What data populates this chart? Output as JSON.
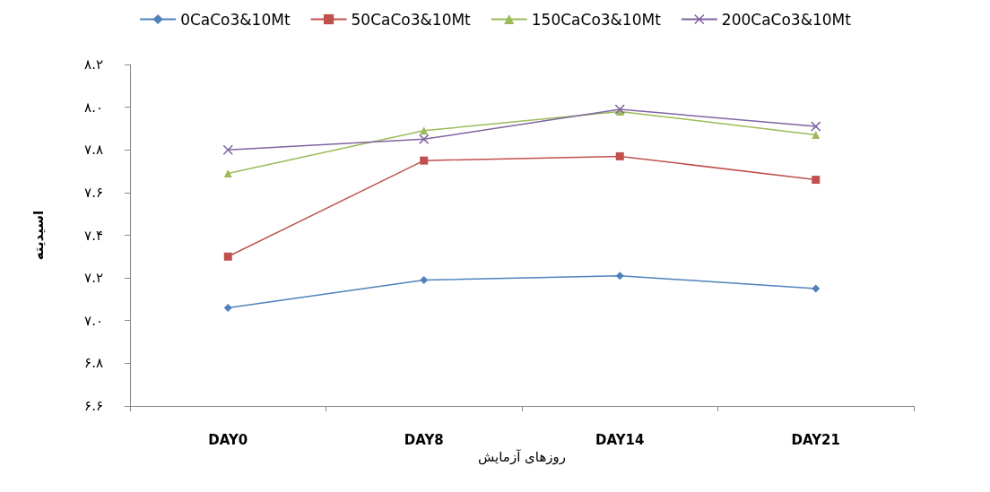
{
  "chart_data": {
    "type": "line",
    "xlabel": "روزهای آزمایش",
    "ylabel": "اسیدیته",
    "categories": [
      "DAY0",
      "DAY8",
      "DAY14",
      "DAY21"
    ],
    "series": [
      {
        "name": "0CaCo3&10Mt",
        "color": "#4f81bd",
        "marker": "diamond",
        "values": [
          7.06,
          7.19,
          7.21,
          7.15
        ]
      },
      {
        "name": "50CaCo3&10Mt",
        "color": "#c0504d",
        "marker": "square",
        "values": [
          7.3,
          7.75,
          7.77,
          7.66
        ]
      },
      {
        "name": "150CaCo3&10Mt",
        "color": "#9bbb59",
        "marker": "triangle",
        "values": [
          7.69,
          7.89,
          7.98,
          7.87
        ]
      },
      {
        "name": "200CaCo3&10Mt",
        "color": "#8064a2",
        "marker": "cross",
        "values": [
          7.8,
          7.85,
          7.99,
          7.91
        ]
      }
    ],
    "ylim": [
      6.6,
      8.2
    ],
    "yticks": [
      {
        "value": 6.6,
        "label": "۶.۶"
      },
      {
        "value": 6.8,
        "label": "۶.۸"
      },
      {
        "value": 7.0,
        "label": "۷.۰"
      },
      {
        "value": 7.2,
        "label": "۷.۲"
      },
      {
        "value": 7.4,
        "label": "۷.۴"
      },
      {
        "value": 7.6,
        "label": "۷.۶"
      },
      {
        "value": 7.8,
        "label": "۷.۸"
      },
      {
        "value": 8.0,
        "label": "۸.۰"
      },
      {
        "value": 8.2,
        "label": "۸.۲"
      }
    ],
    "grid": false,
    "legend": "top",
    "line_style": "solid"
  }
}
